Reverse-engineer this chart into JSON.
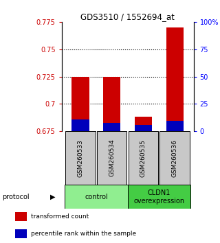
{
  "title": "GDS3510 / 1552694_at",
  "samples": [
    "GSM260533",
    "GSM260534",
    "GSM260535",
    "GSM260536"
  ],
  "red_tops": [
    0.725,
    0.725,
    0.688,
    0.77
  ],
  "blue_tops": [
    0.6855,
    0.6825,
    0.6805,
    0.6845
  ],
  "bar_bottom": 0.675,
  "ylim_left": [
    0.675,
    0.775
  ],
  "ylim_right": [
    0,
    100
  ],
  "yticks_left": [
    0.675,
    0.7,
    0.725,
    0.75,
    0.775
  ],
  "yticks_right": [
    0,
    25,
    50,
    75,
    100
  ],
  "ytick_labels_left": [
    "0.675",
    "0.7",
    "0.725",
    "0.75",
    "0.775"
  ],
  "ytick_labels_right": [
    "0",
    "25",
    "50",
    "75",
    "100%"
  ],
  "dotted_lines": [
    0.7,
    0.725,
    0.75
  ],
  "groups": [
    {
      "label": "control",
      "color": "#90EE90"
    },
    {
      "label": "CLDN1\noverexpression",
      "color": "#44CC44"
    }
  ],
  "protocol_label": "protocol",
  "red_color": "#CC0000",
  "blue_color": "#0000BB",
  "bar_width": 0.55,
  "legend_red": "transformed count",
  "legend_blue": "percentile rank within the sample",
  "sample_box_color": "#C8C8C8",
  "background_color": "#FFFFFF"
}
